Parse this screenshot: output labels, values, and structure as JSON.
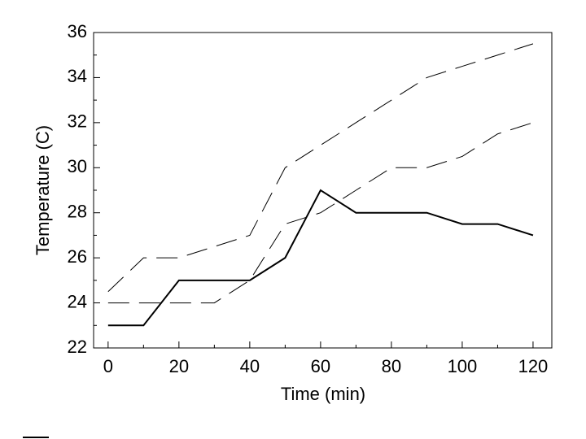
{
  "chart_data": {
    "type": "line",
    "xlabel": "Time (min)",
    "ylabel": "Temperature (C)",
    "x": [
      0,
      10,
      20,
      30,
      40,
      50,
      60,
      70,
      80,
      90,
      100,
      110,
      120
    ],
    "series": [
      {
        "color": "#000000",
        "linestyle": "solid",
        "values": [
          23,
          23,
          25,
          25,
          25,
          26,
          29,
          28,
          28,
          28,
          27.5,
          27.5,
          27
        ]
      },
      {
        "color": "#000000",
        "linestyle": "dashed",
        "values": [
          24.5,
          26,
          26,
          26.5,
          27,
          30,
          31,
          32,
          33,
          34,
          34.5,
          35,
          35.5
        ]
      },
      {
        "color": "#000000",
        "linestyle": "dashed",
        "values": [
          24,
          24,
          24,
          24,
          25,
          27.5,
          28,
          29,
          30,
          30,
          30.5,
          31.5,
          32
        ]
      }
    ],
    "xlim": [
      -4.1,
      125.3
    ],
    "ylim": [
      22,
      36
    ],
    "xticks": [
      0,
      20,
      40,
      60,
      80,
      100,
      120
    ],
    "xminorticks": [
      10,
      30,
      50,
      70,
      90,
      110
    ],
    "yticks": [
      22,
      24,
      26,
      28,
      30,
      32,
      34,
      36
    ],
    "yminorticks": [
      23,
      25,
      27,
      29,
      31,
      33,
      35
    ],
    "grid": false
  }
}
